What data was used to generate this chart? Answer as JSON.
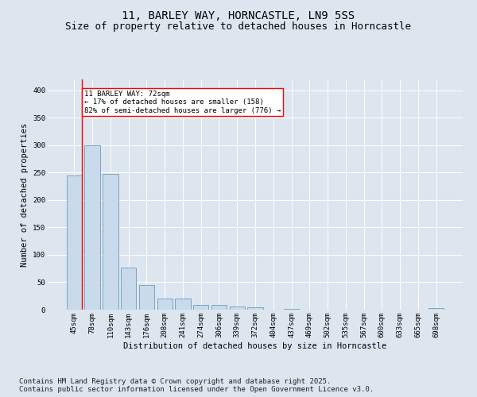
{
  "title": "11, BARLEY WAY, HORNCASTLE, LN9 5SS",
  "subtitle": "Size of property relative to detached houses in Horncastle",
  "xlabel": "Distribution of detached houses by size in Horncastle",
  "ylabel": "Number of detached properties",
  "categories": [
    "45sqm",
    "78sqm",
    "110sqm",
    "143sqm",
    "176sqm",
    "208sqm",
    "241sqm",
    "274sqm",
    "306sqm",
    "339sqm",
    "372sqm",
    "404sqm",
    "437sqm",
    "469sqm",
    "502sqm",
    "535sqm",
    "567sqm",
    "600sqm",
    "633sqm",
    "665sqm",
    "698sqm"
  ],
  "values": [
    245,
    300,
    248,
    77,
    45,
    20,
    20,
    9,
    8,
    6,
    4,
    0,
    2,
    0,
    0,
    0,
    0,
    0,
    0,
    0,
    3
  ],
  "bar_color": "#c9daea",
  "bar_edge_color": "#6b9dc0",
  "vline_color": "red",
  "annotation_text": "11 BARLEY WAY: 72sqm\n← 17% of detached houses are smaller (158)\n82% of semi-detached houses are larger (776) →",
  "ylim": [
    0,
    420
  ],
  "yticks": [
    0,
    50,
    100,
    150,
    200,
    250,
    300,
    350,
    400
  ],
  "bg_color": "#dde6ef",
  "plot_bg_color": "#dde6ef",
  "footer_text": "Contains HM Land Registry data © Crown copyright and database right 2025.\nContains public sector information licensed under the Open Government Licence v3.0.",
  "title_fontsize": 10,
  "subtitle_fontsize": 9,
  "label_fontsize": 7.5,
  "tick_fontsize": 6.5,
  "footer_fontsize": 6.5
}
